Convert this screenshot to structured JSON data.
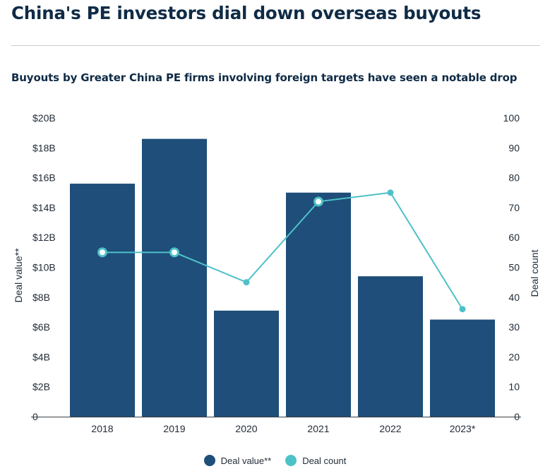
{
  "title": "China's PE investors dial down overseas buyouts",
  "subtitle": "Buyouts by Greater China PE firms involving foreign targets have seen a notable drop",
  "colors": {
    "bar": "#1e4e79",
    "line": "#4ec1c8",
    "text": "#0f2b46"
  },
  "chart_data": {
    "type": "bar",
    "categories": [
      "2018",
      "2019",
      "2020",
      "2021",
      "2022",
      "2023*"
    ],
    "series": [
      {
        "name": "Deal value**",
        "type": "bar",
        "axis": "left",
        "values": [
          15.6,
          18.6,
          7.1,
          15.0,
          9.4,
          6.5
        ],
        "unit": "$B"
      },
      {
        "name": "Deal count",
        "type": "line",
        "axis": "right",
        "values": [
          55,
          55,
          45,
          72,
          75,
          36
        ],
        "hollow_markers": [
          true,
          true,
          false,
          true,
          false,
          false
        ]
      }
    ],
    "ylabel": "Deal value**",
    "y2label": "Deal count",
    "ylim": [
      0,
      20
    ],
    "y2lim": [
      0,
      100
    ],
    "yticks": [
      "0",
      "$2B",
      "$4B",
      "$6B",
      "$8B",
      "$10B",
      "$12B",
      "$14B",
      "$16B",
      "$18B",
      "$20B"
    ],
    "y2ticks": [
      "0",
      "10",
      "20",
      "30",
      "40",
      "50",
      "60",
      "70",
      "80",
      "90",
      "100"
    ],
    "grid": false,
    "legend_position": "bottom-center"
  }
}
